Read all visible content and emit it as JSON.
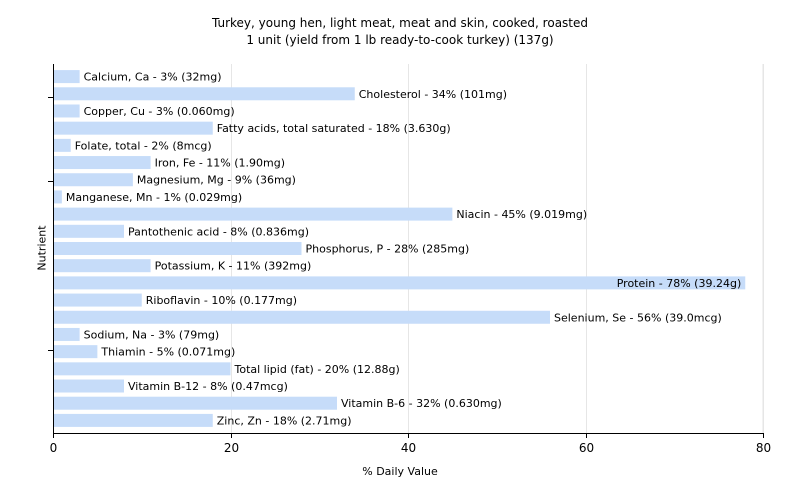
{
  "chart_data": {
    "type": "bar",
    "orientation": "horizontal",
    "title": "Turkey, young hen, light meat, meat and skin, cooked, roasted",
    "subtitle": "1 unit (yield from 1 lb ready-to-cook turkey) (137g)",
    "xlabel": "% Daily Value",
    "ylabel": "Nutrient",
    "xlim": [
      0,
      80
    ],
    "xticks": [
      "0",
      "20",
      "40",
      "60",
      "80"
    ],
    "grid": true,
    "bar_color": "#c6dcf9",
    "categories": [
      "Calcium, Ca",
      "Cholesterol",
      "Copper, Cu",
      "Fatty acids, total saturated",
      "Folate, total",
      "Iron, Fe",
      "Magnesium, Mg",
      "Manganese, Mn",
      "Niacin",
      "Pantothenic acid",
      "Phosphorus, P",
      "Potassium, K",
      "Protein",
      "Riboflavin",
      "Selenium, Se",
      "Sodium, Na",
      "Thiamin",
      "Total lipid (fat)",
      "Vitamin B-12",
      "Vitamin B-6",
      "Zinc, Zn"
    ],
    "values": [
      3,
      34,
      3,
      18,
      2,
      11,
      9,
      1,
      45,
      8,
      28,
      11,
      78,
      10,
      56,
      3,
      5,
      20,
      8,
      32,
      18
    ],
    "labels": [
      "Calcium, Ca - 3% (32mg)",
      "Cholesterol - 34% (101mg)",
      "Copper, Cu - 3% (0.060mg)",
      "Fatty acids, total saturated - 18% (3.630g)",
      "Folate, total - 2% (8mcg)",
      "Iron, Fe - 11% (1.90mg)",
      "Magnesium, Mg - 9% (36mg)",
      "Manganese, Mn - 1% (0.029mg)",
      "Niacin - 45% (9.019mg)",
      "Pantothenic acid - 8% (0.836mg)",
      "Phosphorus, P - 28% (285mg)",
      "Potassium, K - 11% (392mg)",
      "Protein - 78% (39.24g)",
      "Riboflavin - 10% (0.177mg)",
      "Selenium, Se - 56% (39.0mcg)",
      "Sodium, Na - 3% (79mg)",
      "Thiamin - 5% (0.071mg)",
      "Total lipid (fat) - 20% (12.88g)",
      "Vitamin B-12 - 8% (0.47mcg)",
      "Vitamin B-6 - 32% (0.630mg)",
      "Zinc, Zn - 18% (2.71mg)"
    ]
  }
}
